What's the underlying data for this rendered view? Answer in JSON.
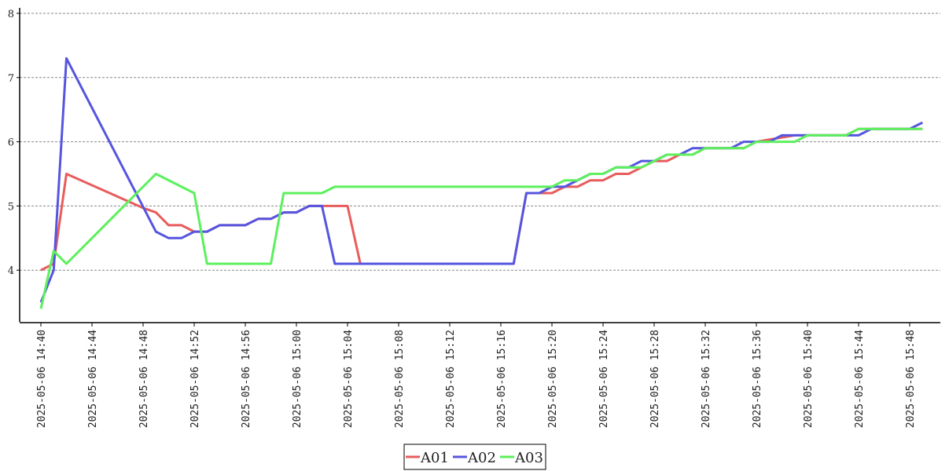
{
  "chart_data": {
    "type": "line",
    "title": "",
    "xlabel": "",
    "ylabel": "",
    "ylim": [
      3.2,
      8
    ],
    "yticks": [
      4,
      5,
      6,
      7,
      8
    ],
    "x_tick_labels": [
      "2025-05-06 14:40",
      "2025-05-06 14:44",
      "2025-05-06 14:48",
      "2025-05-06 14:52",
      "2025-05-06 14:56",
      "2025-05-06 15:00",
      "2025-05-06 15:04",
      "2025-05-06 15:08",
      "2025-05-06 15:12",
      "2025-05-06 15:16",
      "2025-05-06 15:20",
      "2025-05-06 15:24",
      "2025-05-06 15:28",
      "2025-05-06 15:32",
      "2025-05-06 15:36",
      "2025-05-06 15:40",
      "2025-05-06 15:44",
      "2025-05-06 15:48"
    ],
    "grid": "horizontal-dashed",
    "legend": "bottom-center",
    "series": [
      {
        "name": "A01",
        "color": "#e85c5c",
        "points": [
          [
            "2025-05-06 14:40",
            4.0
          ],
          [
            "2025-05-06 14:41",
            4.1
          ],
          [
            "2025-05-06 14:42",
            5.5
          ],
          [
            "2025-05-06 14:48",
            4.97
          ],
          [
            "2025-05-06 14:49",
            4.9
          ],
          [
            "2025-05-06 14:50",
            4.7
          ],
          [
            "2025-05-06 14:51",
            4.7
          ],
          [
            "2025-05-06 14:52",
            4.6
          ],
          [
            "2025-05-06 14:53",
            4.6
          ],
          [
            "2025-05-06 14:54",
            4.7
          ],
          [
            "2025-05-06 14:55",
            4.7
          ],
          [
            "2025-05-06 14:56",
            4.7
          ],
          [
            "2025-05-06 14:57",
            4.8
          ],
          [
            "2025-05-06 14:58",
            4.8
          ],
          [
            "2025-05-06 14:59",
            4.9
          ],
          [
            "2025-05-06 15:00",
            4.9
          ],
          [
            "2025-05-06 15:01",
            5.0
          ],
          [
            "2025-05-06 15:04",
            5.0
          ],
          [
            "2025-05-06 15:05",
            4.1
          ],
          [
            "2025-05-06 15:17",
            4.1
          ],
          [
            "2025-05-06 15:18",
            5.2
          ],
          [
            "2025-05-06 15:20",
            5.2
          ],
          [
            "2025-05-06 15:21",
            5.3
          ],
          [
            "2025-05-06 15:22",
            5.3
          ],
          [
            "2025-05-06 15:23",
            5.4
          ],
          [
            "2025-05-06 15:24",
            5.4
          ],
          [
            "2025-05-06 15:25",
            5.5
          ],
          [
            "2025-05-06 15:26",
            5.5
          ],
          [
            "2025-05-06 15:27",
            5.6
          ],
          [
            "2025-05-06 15:28",
            5.7
          ],
          [
            "2025-05-06 15:29",
            5.7
          ],
          [
            "2025-05-06 15:30",
            5.8
          ],
          [
            "2025-05-06 15:31",
            5.8
          ],
          [
            "2025-05-06 15:32",
            5.9
          ],
          [
            "2025-05-06 15:35",
            5.9
          ],
          [
            "2025-05-06 15:36",
            6.0
          ],
          [
            "2025-05-06 15:39",
            6.1
          ],
          [
            "2025-05-06 15:43",
            6.1
          ],
          [
            "2025-05-06 15:44",
            6.2
          ],
          [
            "2025-05-06 15:49",
            6.2
          ]
        ]
      },
      {
        "name": "A02",
        "color": "#5555e0",
        "points": [
          [
            "2025-05-06 14:40",
            3.5
          ],
          [
            "2025-05-06 14:41",
            4.0
          ],
          [
            "2025-05-06 14:42",
            7.3
          ],
          [
            "2025-05-06 14:49",
            4.6
          ],
          [
            "2025-05-06 14:50",
            4.5
          ],
          [
            "2025-05-06 14:51",
            4.5
          ],
          [
            "2025-05-06 14:52",
            4.6
          ],
          [
            "2025-05-06 14:53",
            4.6
          ],
          [
            "2025-05-06 14:54",
            4.7
          ],
          [
            "2025-05-06 14:56",
            4.7
          ],
          [
            "2025-05-06 14:57",
            4.8
          ],
          [
            "2025-05-06 14:58",
            4.8
          ],
          [
            "2025-05-06 14:59",
            4.9
          ],
          [
            "2025-05-06 15:00",
            4.9
          ],
          [
            "2025-05-06 15:01",
            5.0
          ],
          [
            "2025-05-06 15:02",
            5.0
          ],
          [
            "2025-05-06 15:03",
            4.1
          ],
          [
            "2025-05-06 15:17",
            4.1
          ],
          [
            "2025-05-06 15:18",
            5.2
          ],
          [
            "2025-05-06 15:19",
            5.2
          ],
          [
            "2025-05-06 15:20",
            5.3
          ],
          [
            "2025-05-06 15:21",
            5.3
          ],
          [
            "2025-05-06 15:23",
            5.5
          ],
          [
            "2025-05-06 15:24",
            5.5
          ],
          [
            "2025-05-06 15:25",
            5.6
          ],
          [
            "2025-05-06 15:26",
            5.6
          ],
          [
            "2025-05-06 15:27",
            5.7
          ],
          [
            "2025-05-06 15:28",
            5.7
          ],
          [
            "2025-05-06 15:29",
            5.8
          ],
          [
            "2025-05-06 15:30",
            5.8
          ],
          [
            "2025-05-06 15:31",
            5.9
          ],
          [
            "2025-05-06 15:34",
            5.9
          ],
          [
            "2025-05-06 15:35",
            6.0
          ],
          [
            "2025-05-06 15:36",
            6.0
          ],
          [
            "2025-05-06 15:37",
            6.0
          ],
          [
            "2025-05-06 15:38",
            6.1
          ],
          [
            "2025-05-06 15:44",
            6.1
          ],
          [
            "2025-05-06 15:45",
            6.2
          ],
          [
            "2025-05-06 15:48",
            6.2
          ],
          [
            "2025-05-06 15:49",
            6.3
          ]
        ]
      },
      {
        "name": "A03",
        "color": "#5cf05c",
        "points": [
          [
            "2025-05-06 14:40",
            3.4
          ],
          [
            "2025-05-06 14:41",
            4.3
          ],
          [
            "2025-05-06 14:42",
            4.1
          ],
          [
            "2025-05-06 14:49",
            5.5
          ],
          [
            "2025-05-06 14:52",
            5.2
          ],
          [
            "2025-05-06 14:53",
            4.1
          ],
          [
            "2025-05-06 14:58",
            4.1
          ],
          [
            "2025-05-06 14:59",
            5.2
          ],
          [
            "2025-05-06 15:02",
            5.2
          ],
          [
            "2025-05-06 15:03",
            5.3
          ],
          [
            "2025-05-06 15:20",
            5.3
          ],
          [
            "2025-05-06 15:21",
            5.4
          ],
          [
            "2025-05-06 15:22",
            5.4
          ],
          [
            "2025-05-06 15:23",
            5.5
          ],
          [
            "2025-05-06 15:24",
            5.5
          ],
          [
            "2025-05-06 15:25",
            5.6
          ],
          [
            "2025-05-06 15:27",
            5.6
          ],
          [
            "2025-05-06 15:28",
            5.7
          ],
          [
            "2025-05-06 15:29",
            5.8
          ],
          [
            "2025-05-06 15:31",
            5.8
          ],
          [
            "2025-05-06 15:32",
            5.9
          ],
          [
            "2025-05-06 15:35",
            5.9
          ],
          [
            "2025-05-06 15:36",
            6.0
          ],
          [
            "2025-05-06 15:37",
            6.0
          ],
          [
            "2025-05-06 15:38",
            6.0
          ],
          [
            "2025-05-06 15:39",
            6.0
          ],
          [
            "2025-05-06 15:40",
            6.1
          ],
          [
            "2025-05-06 15:43",
            6.1
          ],
          [
            "2025-05-06 15:44",
            6.2
          ],
          [
            "2025-05-06 15:49",
            6.2
          ]
        ]
      }
    ]
  }
}
